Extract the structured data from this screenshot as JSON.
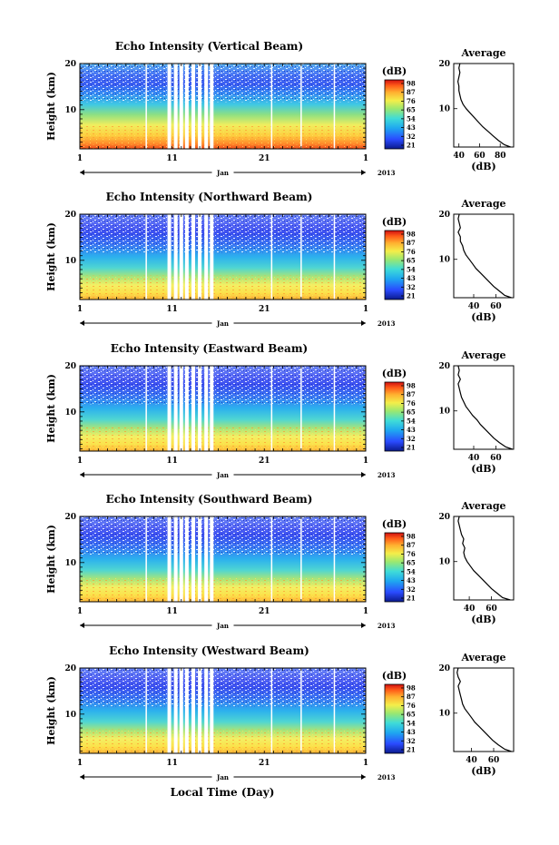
{
  "figure": {
    "month_label": "Jan",
    "year_label": "2013",
    "xlabel": "Local Time (Day)",
    "colorbar_unit": "(dB)",
    "colorbar_ticks": [
      "98",
      "87",
      "76",
      "65",
      "54",
      "43",
      "32",
      "21"
    ],
    "average_title": "Average",
    "average_xlabel": "(dB)"
  },
  "chart_data": [
    {
      "type": "heatmap",
      "title": "Echo Intensity (Vertical Beam)",
      "ylabel": "Height (km)",
      "xlabel": "Local Time (Day)",
      "x_ticks": [
        "1",
        "11",
        "21",
        "1"
      ],
      "y_ticks": [
        "10",
        "20"
      ],
      "xlim": [
        1,
        32
      ],
      "ylim": [
        1.5,
        20
      ],
      "colorbar": {
        "unit": "(dB)",
        "ticks": [
          98,
          87,
          76,
          65,
          54,
          43,
          32,
          21
        ]
      },
      "data_gap_days": [
        8.2,
        10.7,
        11.4,
        12.0,
        12.6,
        13.3,
        14.0,
        14.7,
        15.3,
        21.8,
        25.0,
        28.6
      ],
      "average_profile": {
        "title": "Average",
        "xlabel": "(dB)",
        "x_ticks": [
          40,
          60,
          80
        ],
        "xlim": [
          35,
          93
        ],
        "height_km": [
          1.5,
          2,
          3,
          4,
          5,
          6,
          7,
          8,
          9,
          10,
          11,
          12,
          13,
          14,
          15,
          16,
          17,
          18,
          19,
          20
        ],
        "db": [
          90,
          84,
          78,
          73,
          68,
          63,
          59,
          55,
          51,
          47,
          44,
          42,
          41,
          40,
          40,
          39,
          40,
          41,
          40,
          41
        ]
      }
    },
    {
      "type": "heatmap",
      "title": "Echo Intensity (Northward Beam)",
      "ylabel": "Height (km)",
      "xlabel": "Local Time (Day)",
      "x_ticks": [
        "1",
        "11",
        "21",
        "1"
      ],
      "y_ticks": [
        "10",
        "20"
      ],
      "xlim": [
        1,
        32
      ],
      "ylim": [
        1.5,
        20
      ],
      "colorbar": {
        "unit": "(dB)",
        "ticks": [
          98,
          87,
          76,
          65,
          54,
          43,
          32,
          21
        ]
      },
      "data_gap_days": [
        8.2,
        10.7,
        11.4,
        12.0,
        12.6,
        13.3,
        14.0,
        14.7,
        15.3,
        21.8,
        25.0,
        28.6
      ],
      "average_profile": {
        "title": "Average",
        "xlabel": "(dB)",
        "x_ticks": [
          40,
          60
        ],
        "xlim": [
          22,
          76
        ],
        "height_km": [
          1.5,
          2,
          3,
          4,
          5,
          6,
          7,
          8,
          9,
          10,
          11,
          12,
          13,
          14,
          15,
          16,
          17,
          18,
          19,
          20
        ],
        "db": [
          74,
          68,
          63,
          58,
          54,
          50,
          46,
          42,
          39,
          36,
          33,
          31,
          30,
          28,
          28,
          26,
          28,
          27,
          26,
          27
        ]
      }
    },
    {
      "type": "heatmap",
      "title": "Echo Intensity (Eastward Beam)",
      "ylabel": "Height (km)",
      "xlabel": "Local Time (Day)",
      "x_ticks": [
        "1",
        "11",
        "21",
        "1"
      ],
      "y_ticks": [
        "10",
        "20"
      ],
      "xlim": [
        1,
        32
      ],
      "ylim": [
        1.5,
        20
      ],
      "colorbar": {
        "unit": "(dB)",
        "ticks": [
          98,
          87,
          76,
          65,
          54,
          43,
          32,
          21
        ]
      },
      "data_gap_days": [
        8.2,
        10.7,
        11.4,
        12.0,
        12.6,
        13.3,
        14.0,
        14.7,
        15.3,
        21.8,
        25.0,
        28.6
      ],
      "average_profile": {
        "title": "Average",
        "xlabel": "(dB)",
        "x_ticks": [
          40,
          60
        ],
        "xlim": [
          22,
          76
        ],
        "height_km": [
          1.5,
          2,
          3,
          4,
          5,
          6,
          7,
          8,
          9,
          10,
          11,
          12,
          13,
          14,
          15,
          16,
          17,
          18,
          19,
          20
        ],
        "db": [
          75,
          69,
          63,
          58,
          54,
          50,
          46,
          43,
          39,
          36,
          33,
          31,
          29,
          28,
          27,
          26,
          28,
          26,
          27,
          26
        ]
      }
    },
    {
      "type": "heatmap",
      "title": "Echo Intensity (Southward Beam)",
      "ylabel": "Height (km)",
      "xlabel": "Local Time (Day)",
      "x_ticks": [
        "1",
        "11",
        "21",
        "1"
      ],
      "y_ticks": [
        "10",
        "20"
      ],
      "xlim": [
        1,
        32
      ],
      "ylim": [
        1.5,
        20
      ],
      "colorbar": {
        "unit": "(dB)",
        "ticks": [
          98,
          87,
          76,
          65,
          54,
          43,
          32,
          21
        ]
      },
      "data_gap_days": [
        8.2,
        10.7,
        11.4,
        12.0,
        12.6,
        13.3,
        14.0,
        14.7,
        15.3,
        21.8,
        25.0,
        28.6
      ],
      "average_profile": {
        "title": "Average",
        "xlabel": "(dB)",
        "x_ticks": [
          40,
          60
        ],
        "xlim": [
          26,
          80
        ],
        "height_km": [
          1.5,
          2,
          3,
          4,
          5,
          6,
          7,
          8,
          9,
          10,
          11,
          12,
          13,
          14,
          15,
          16,
          17,
          18,
          19,
          20
        ],
        "db": [
          77,
          70,
          65,
          60,
          56,
          52,
          48,
          44,
          41,
          38,
          36,
          35,
          36,
          34,
          35,
          33,
          32,
          31,
          30,
          31
        ]
      }
    },
    {
      "type": "heatmap",
      "title": "Echo Intensity (Westward Beam)",
      "ylabel": "Height (km)",
      "xlabel": "Local Time (Day)",
      "x_ticks": [
        "1",
        "11",
        "21",
        "1"
      ],
      "y_ticks": [
        "10",
        "20"
      ],
      "xlim": [
        1,
        32
      ],
      "ylim": [
        1.5,
        20
      ],
      "colorbar": {
        "unit": "(dB)",
        "ticks": [
          98,
          87,
          76,
          65,
          54,
          43,
          32,
          21
        ]
      },
      "data_gap_days": [
        8.2,
        10.7,
        11.4,
        12.0,
        12.6,
        13.3,
        14.0,
        14.7,
        15.3,
        21.8,
        25.0,
        28.6
      ],
      "average_profile": {
        "title": "Average",
        "xlabel": "(dB)",
        "x_ticks": [
          40,
          60
        ],
        "xlim": [
          24,
          78
        ],
        "height_km": [
          1.5,
          2,
          3,
          4,
          5,
          6,
          7,
          8,
          9,
          10,
          11,
          12,
          13,
          14,
          15,
          16,
          17,
          18,
          19,
          20
        ],
        "db": [
          76,
          70,
          64,
          59,
          55,
          51,
          47,
          43,
          40,
          37,
          34,
          32,
          31,
          30,
          29,
          28,
          30,
          28,
          27,
          28
        ]
      }
    }
  ]
}
